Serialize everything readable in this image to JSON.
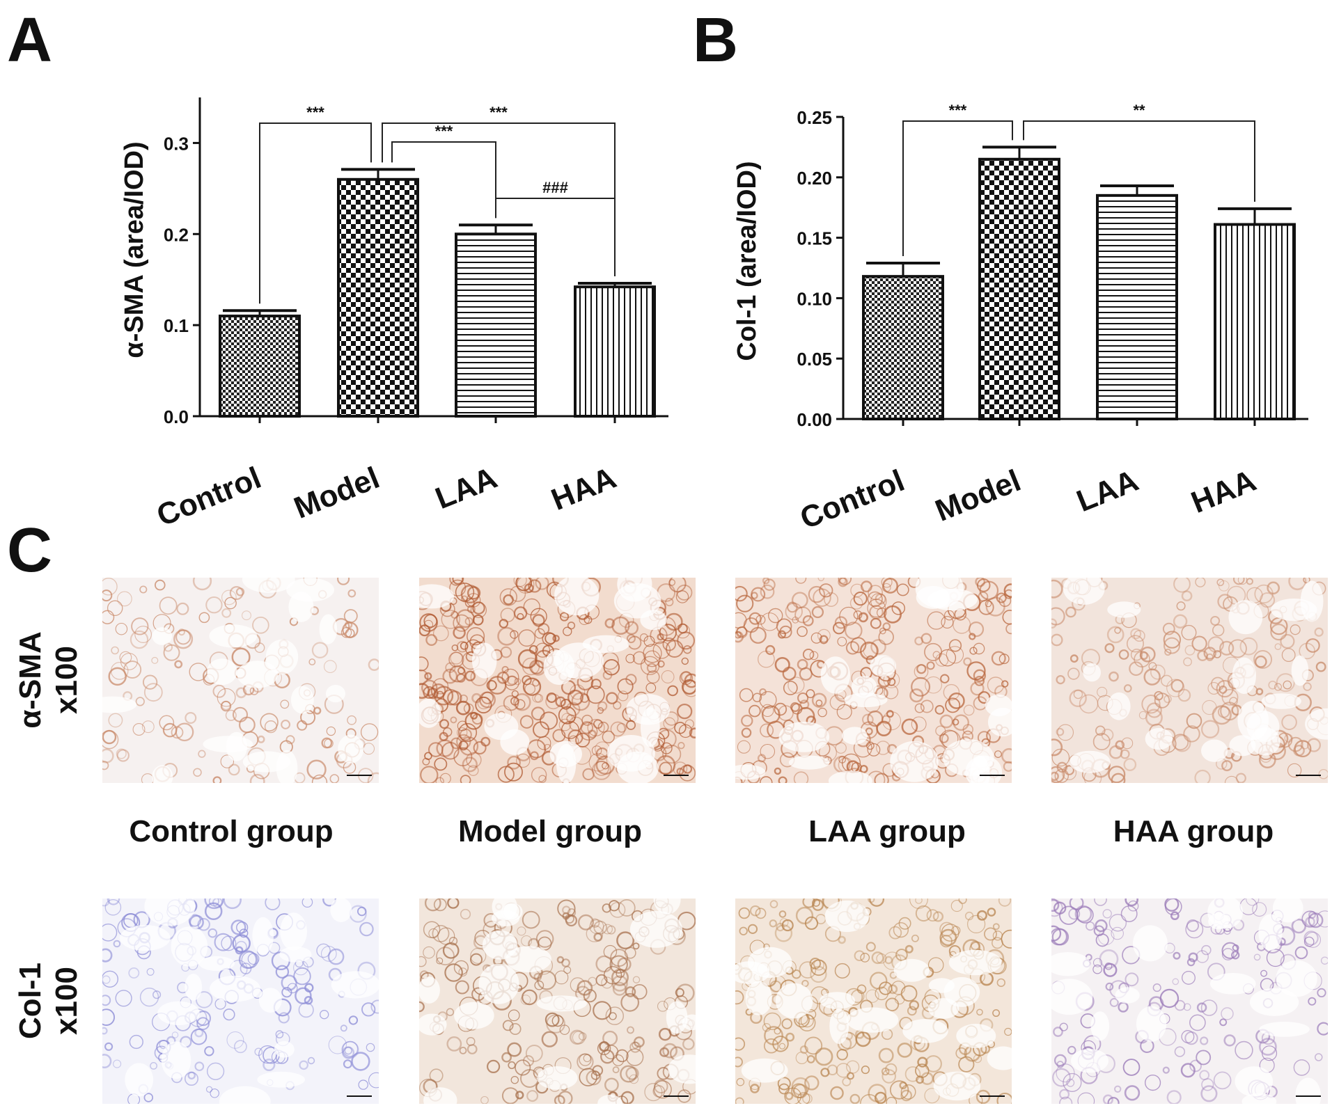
{
  "panels": {
    "a": {
      "letter": "A"
    },
    "b": {
      "letter": "B"
    },
    "c": {
      "letter": "C"
    }
  },
  "chart_data": [
    {
      "type": "bar",
      "panel": "A",
      "categories": [
        "Control",
        "Model",
        "LAA",
        "HAA"
      ],
      "values": [
        0.11,
        0.26,
        0.2,
        0.142
      ],
      "errors": [
        0.006,
        0.011,
        0.01,
        0.004
      ],
      "ylabel": "α-SMA (area/IOD)",
      "ylim": [
        0,
        0.35
      ],
      "yticks": [
        0.0,
        0.1,
        0.2,
        0.3
      ],
      "ytick_labels": [
        "0.0",
        "0.1",
        "0.2",
        "0.3"
      ],
      "patterns": [
        "fine-check",
        "check",
        "horizontal",
        "vertical"
      ],
      "significance": [
        {
          "from": "Control",
          "to": "Model",
          "label": "***"
        },
        {
          "from": "Model",
          "to": "LAA",
          "label": "***"
        },
        {
          "from": "Model",
          "to": "HAA",
          "label": "***"
        },
        {
          "from": "LAA",
          "to": "HAA",
          "label": "###"
        }
      ],
      "grid": false
    },
    {
      "type": "bar",
      "panel": "B",
      "categories": [
        "Control",
        "Model",
        "LAA",
        "HAA"
      ],
      "values": [
        0.118,
        0.215,
        0.185,
        0.161
      ],
      "errors": [
        0.011,
        0.01,
        0.008,
        0.013
      ],
      "ylabel": "Col-1 (area/IOD)",
      "ylim": [
        0,
        0.25
      ],
      "yticks": [
        0.0,
        0.05,
        0.1,
        0.15,
        0.2,
        0.25
      ],
      "ytick_labels": [
        "0.00",
        "0.05",
        "0.10",
        "0.15",
        "0.20",
        "0.25"
      ],
      "patterns": [
        "fine-check",
        "check",
        "horizontal",
        "vertical"
      ],
      "significance": [
        {
          "from": "Control",
          "to": "Model",
          "label": "***"
        },
        {
          "from": "Model",
          "to": "HAA",
          "label": "**"
        }
      ],
      "grid": false
    }
  ],
  "micrographs": {
    "group_labels": [
      "Control group",
      "Model group",
      "LAA group",
      "HAA group"
    ],
    "rows": [
      {
        "label_line1": "α-SMA",
        "label_line2": "x100"
      },
      {
        "label_line1": "Col-1",
        "label_line2": "x100"
      }
    ]
  }
}
